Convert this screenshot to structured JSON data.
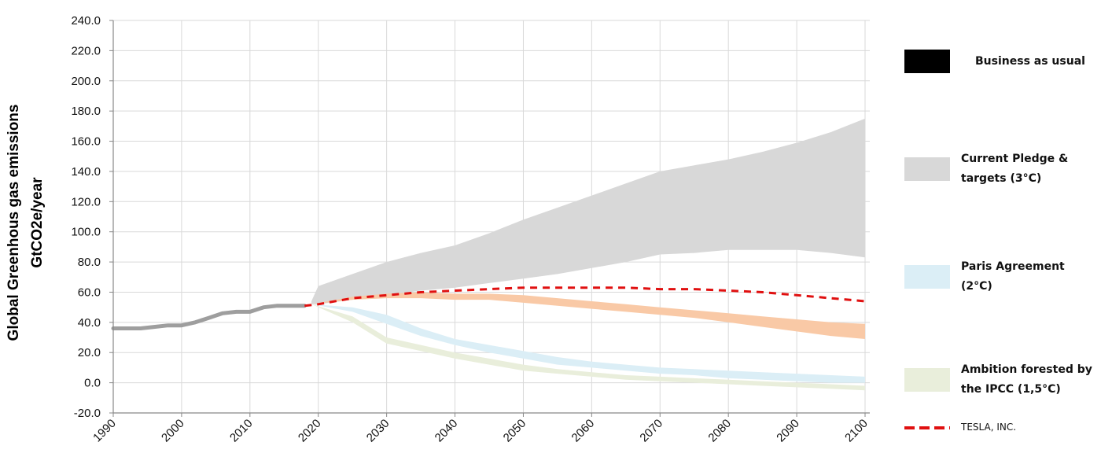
{
  "chart_data": {
    "type": "area",
    "ylabel_line1": "Global Greenhous gas emissions",
    "ylabel_line2": "GtCO2e/year",
    "ylim": [
      -20,
      240
    ],
    "yticks": [
      "240.0",
      "220.0",
      "200.0",
      "180.0",
      "160.0",
      "140.0",
      "120.0",
      "100.0",
      "80.0",
      "60.0",
      "40.0",
      "20.0",
      "0.0",
      "-20.0"
    ],
    "ytick_values": [
      240,
      220,
      200,
      180,
      160,
      140,
      120,
      100,
      80,
      60,
      40,
      20,
      0,
      -20
    ],
    "xlim": [
      1990,
      2100
    ],
    "xticks": [
      "1990",
      "2000",
      "2010",
      "2020",
      "2030",
      "2040",
      "2050",
      "2060",
      "2070",
      "2080",
      "2090",
      "2100"
    ],
    "xtick_values": [
      1990,
      2000,
      2010,
      2020,
      2030,
      2040,
      2050,
      2060,
      2070,
      2080,
      2090,
      2100
    ],
    "grid": true,
    "legend_position": "right",
    "series": [
      {
        "key": "historical",
        "kind": "line",
        "color": "#9e9e9e",
        "x": [
          1990,
          1992,
          1994,
          1996,
          1998,
          2000,
          2002,
          2004,
          2006,
          2008,
          2010,
          2012,
          2014,
          2016,
          2018
        ],
        "y": [
          36,
          36,
          36,
          37,
          38,
          38,
          40,
          43,
          46,
          47,
          47,
          50,
          51,
          51,
          51
        ]
      },
      {
        "key": "current_pledge",
        "name": "Current Pledge & targets (3°C)",
        "kind": "band",
        "color": "#d8d8d8",
        "x": [
          2019,
          2020,
          2025,
          2030,
          2035,
          2040,
          2045,
          2050,
          2055,
          2060,
          2065,
          2070,
          2075,
          2080,
          2085,
          2090,
          2095,
          2100
        ],
        "upper": [
          54,
          64,
          72,
          80,
          86,
          91,
          99,
          108,
          116,
          124,
          132,
          140,
          144,
          148,
          153,
          159,
          166,
          175
        ],
        "lower": [
          52,
          52,
          55,
          58,
          61,
          63,
          66,
          69,
          72,
          76,
          80,
          85,
          86,
          88,
          88,
          88,
          86,
          83
        ]
      },
      {
        "key": "tesla_band",
        "kind": "band",
        "color": "#f9c9a6",
        "x": [
          2019,
          2025,
          2030,
          2035,
          2040,
          2045,
          2050,
          2055,
          2060,
          2065,
          2070,
          2075,
          2080,
          2085,
          2090,
          2095,
          2100
        ],
        "upper": [
          52,
          57,
          59,
          60,
          59,
          59,
          58,
          56,
          54,
          52,
          50,
          48,
          46,
          44,
          42,
          40,
          39
        ],
        "lower": [
          52,
          55,
          56,
          56,
          55,
          55,
          53,
          51,
          49,
          47,
          45,
          43,
          40,
          37,
          34,
          31,
          29
        ]
      },
      {
        "key": "paris",
        "name": "Paris Agreement (2°C)",
        "kind": "band",
        "color": "#dbeef6",
        "x": [
          2019,
          2025,
          2030,
          2035,
          2040,
          2045,
          2050,
          2055,
          2060,
          2065,
          2070,
          2075,
          2080,
          2085,
          2090,
          2095,
          2100
        ],
        "upper": [
          52,
          50,
          45,
          36,
          29,
          25,
          21,
          17,
          14,
          12,
          10,
          9,
          8,
          7,
          6,
          5,
          4
        ],
        "lower": [
          52,
          47,
          39,
          31,
          25,
          20,
          16,
          12,
          10,
          8,
          6,
          5,
          3,
          2,
          1,
          0,
          0
        ]
      },
      {
        "key": "ipcc",
        "name": "Ambition forested by the IPCC (1,5°C)",
        "kind": "band",
        "color": "#e9eedb",
        "x": [
          2019,
          2025,
          2030,
          2035,
          2040,
          2045,
          2050,
          2055,
          2060,
          2065,
          2070,
          2075,
          2080,
          2085,
          2090,
          2095,
          2100
        ],
        "upper": [
          52,
          44,
          30,
          25,
          20,
          16,
          12,
          9,
          7,
          5,
          4,
          3,
          2,
          1,
          0,
          -1,
          -2
        ],
        "lower": [
          52,
          40,
          26,
          21,
          16,
          12,
          8,
          6,
          4,
          2,
          1,
          0,
          -1,
          -2,
          -3,
          -4,
          -5
        ]
      },
      {
        "key": "tesla",
        "name": "TESLA, INC.",
        "kind": "dashed-line",
        "color": "#e01010",
        "x": [
          2018,
          2020,
          2025,
          2030,
          2035,
          2040,
          2045,
          2050,
          2055,
          2060,
          2065,
          2070,
          2075,
          2080,
          2085,
          2090,
          2095,
          2100
        ],
        "y": [
          51,
          52,
          56,
          58,
          60,
          61,
          62,
          63,
          63,
          63,
          63,
          62,
          62,
          61,
          60,
          58,
          56,
          54
        ]
      }
    ]
  },
  "legend": {
    "items": [
      {
        "label": "Business as usual",
        "color": "#000000"
      },
      {
        "label": "Current Pledge & targets (3°C)",
        "color": "#d8d8d8"
      },
      {
        "label": "Paris Agreement (2°C)",
        "color": "#dbeef6"
      },
      {
        "label": "Ambition forested by the IPCC (1,5°C)",
        "color": "#e9eedb"
      },
      {
        "label": "TESLA, INC.",
        "color": "#e01010"
      }
    ]
  }
}
